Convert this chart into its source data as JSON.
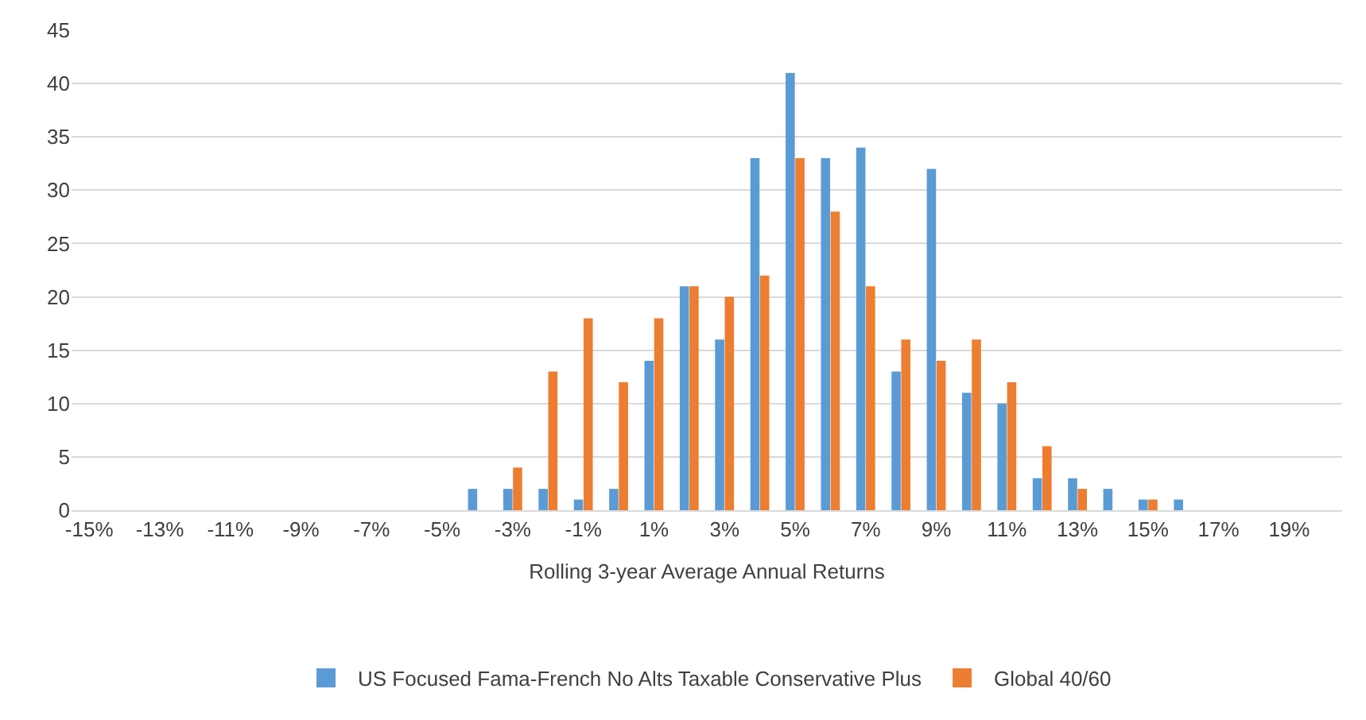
{
  "chart_data": {
    "type": "bar",
    "xlabel": "Rolling 3-year Average Annual Returns",
    "categories": [
      "-15%",
      null,
      "-13%",
      null,
      "-11%",
      null,
      "-9%",
      null,
      "-7%",
      null,
      "-5%",
      null,
      "-3%",
      null,
      "-1%",
      null,
      "1%",
      null,
      "3%",
      null,
      "5%",
      null,
      "7%",
      null,
      "9%",
      null,
      "11%",
      null,
      "13%",
      null,
      "15%",
      null,
      "17%",
      null,
      "19%",
      null
    ],
    "series": [
      {
        "name": "US Focused Fama-French No Alts Taxable Conservative Plus",
        "color": "#5b9bd5",
        "values": [
          0,
          0,
          0,
          0,
          0,
          0,
          0,
          0,
          0,
          0,
          0,
          2,
          2,
          2,
          1,
          2,
          14,
          21,
          16,
          33,
          41,
          33,
          34,
          13,
          32,
          11,
          10,
          3,
          3,
          2,
          1,
          1,
          0,
          0,
          0,
          0
        ]
      },
      {
        "name": "Global 40/60",
        "color": "#ed7d31",
        "values": [
          0,
          0,
          0,
          0,
          0,
          0,
          0,
          0,
          0,
          0,
          0,
          0,
          4,
          13,
          18,
          12,
          18,
          21,
          20,
          22,
          33,
          28,
          21,
          16,
          14,
          16,
          12,
          6,
          2,
          0,
          1,
          0,
          0,
          0,
          0,
          0
        ]
      }
    ],
    "ylim": [
      0,
      45
    ],
    "yticks": [
      0,
      5,
      10,
      15,
      20,
      25,
      30,
      35,
      40,
      45
    ],
    "grid": "y",
    "legend": "bottom"
  }
}
